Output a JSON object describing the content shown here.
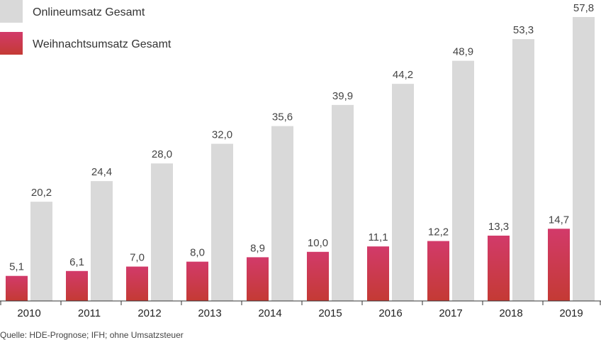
{
  "chart_data": {
    "type": "bar",
    "categories": [
      "2010",
      "2011",
      "2012",
      "2013",
      "2014",
      "2015",
      "2016",
      "2017",
      "2018",
      "2019"
    ],
    "series": [
      {
        "name": "Weihnachtsumsatz Gesamt",
        "color": "#c8335a",
        "values": [
          5.1,
          6.1,
          7.0,
          8.0,
          8.9,
          10.0,
          11.1,
          12.2,
          13.3,
          14.7
        ],
        "labels": [
          "5,1",
          "6,1",
          "7,0",
          "8,0",
          "8,9",
          "10,0",
          "11,1",
          "12,2",
          "13,3",
          "14,7"
        ]
      },
      {
        "name": "Onlineumsatz Gesamt",
        "color": "#d9d9d9",
        "values": [
          20.2,
          24.4,
          28.0,
          32.0,
          35.6,
          39.9,
          44.2,
          48.9,
          53.3,
          57.8
        ],
        "labels": [
          "20,2",
          "24,4",
          "28,0",
          "32,0",
          "35,6",
          "39,9",
          "44,2",
          "48,9",
          "53,3",
          "57,8"
        ]
      }
    ],
    "legend": {
      "placement": "top-left",
      "entries": [
        "Onlineumsatz Gesamt",
        "Weihnachtsumsatz Gesamt"
      ]
    },
    "title": "",
    "xlabel": "",
    "ylabel": "",
    "ylim": [
      0,
      58
    ],
    "grid": false
  },
  "source": "Quelle: HDE-Prognose; IFH; ohne Umsatzsteuer"
}
